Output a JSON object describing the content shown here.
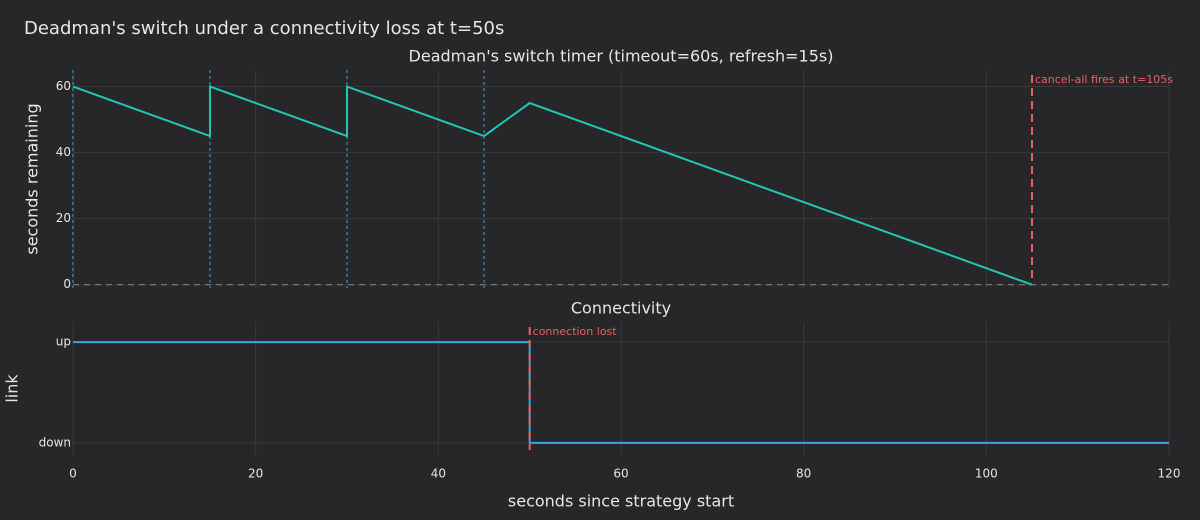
{
  "title": "Deadman's switch under a connectivity loss at t=50s",
  "chart_data": [
    {
      "type": "line",
      "title": "Deadman's switch timer (timeout=60s, refresh=15s)",
      "ylabel": "seconds remaining",
      "x": [
        0,
        15,
        15,
        30,
        30,
        45,
        50,
        105
      ],
      "series": [
        {
          "name": "timer",
          "color": "#1fc8b5",
          "values": [
            60,
            45,
            60,
            45,
            60,
            45,
            55,
            0
          ]
        }
      ],
      "xlim": [
        0,
        120
      ],
      "ylim": [
        -1,
        65
      ],
      "yticks": [
        0,
        20,
        40,
        60
      ],
      "grid": true,
      "refresh_lines": [
        0,
        15,
        30,
        45
      ],
      "refresh_color": "#3aa6dc",
      "hline": 0,
      "event": {
        "x": 105,
        "text": "cancel-all fires at t=105s",
        "color": "#e8605f"
      }
    },
    {
      "type": "step",
      "title": "Connectivity",
      "ylabel": "link",
      "xlabel": "seconds since strategy start",
      "x": [
        0,
        50,
        50,
        120
      ],
      "series": [
        {
          "name": "link",
          "color": "#3aa6dc",
          "values": [
            1,
            1,
            0,
            0
          ]
        }
      ],
      "xlim": [
        0,
        120
      ],
      "xticks": [
        0,
        20,
        40,
        60,
        80,
        100,
        120
      ],
      "ylim": [
        -0.12,
        1.2
      ],
      "yticks": [
        {
          "value": 0,
          "label": "down"
        },
        {
          "value": 1,
          "label": "up"
        }
      ],
      "grid": true,
      "event": {
        "x": 50,
        "text": "connection lost",
        "color": "#e8605f"
      }
    }
  ]
}
